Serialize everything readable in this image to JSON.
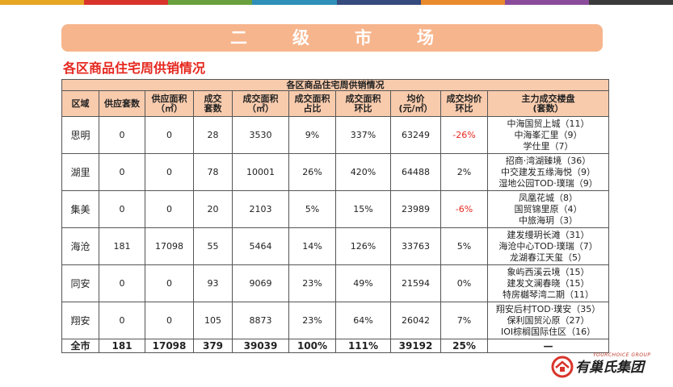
{
  "top_bar_colors": [
    "#e6a523",
    "#d9342b",
    "#6aa13e",
    "#2e8fb8",
    "#354a7d",
    "#e98a2d",
    "#8a4b9b",
    "#3b3b3b"
  ],
  "banner": {
    "text": "二级市场"
  },
  "section_title": "各区商品住宅周供销情况",
  "table": {
    "caption": "各区商品住宅周供销情况",
    "headers": [
      [
        "区域"
      ],
      [
        "供应套数"
      ],
      [
        "供应面积",
        "（㎡）"
      ],
      [
        "成交",
        "套数"
      ],
      [
        "成交面积",
        "（㎡）"
      ],
      [
        "成交面积",
        "占比"
      ],
      [
        "成交面积",
        "环比"
      ],
      [
        "均价",
        "(元/㎡）"
      ],
      [
        "成交均价",
        "环比"
      ],
      [
        "主力成交楼盘",
        "(套数）"
      ]
    ],
    "rows": [
      {
        "area": "思明",
        "supply_units": "0",
        "supply_area": "0",
        "deal_units": "28",
        "deal_area": "3530",
        "share": "9%",
        "mom": "337%",
        "avg_price": "63249",
        "price_mom": "-26%",
        "price_mom_negative": true,
        "projects": [
          "中海国贸上城（11）",
          "中海峯汇里（9）",
          "学仕里（7）"
        ]
      },
      {
        "area": "湖里",
        "supply_units": "0",
        "supply_area": "0",
        "deal_units": "78",
        "deal_area": "10001",
        "share": "26%",
        "mom": "420%",
        "avg_price": "64488",
        "price_mom": "2%",
        "price_mom_negative": false,
        "projects": [
          "招商·湾湖臻境（36）",
          "中交建发五缘海悦（9）",
          "湿地公园TOD·璞瑞（9）"
        ]
      },
      {
        "area": "集美",
        "supply_units": "0",
        "supply_area": "0",
        "deal_units": "20",
        "deal_area": "2103",
        "share": "5%",
        "mom": "15%",
        "avg_price": "23989",
        "price_mom": "-6%",
        "price_mom_negative": true,
        "projects": [
          "凤凰花城（8）",
          "国贸锦里原（4）",
          "中旅海玥（3）"
        ]
      },
      {
        "area": "海沧",
        "supply_units": "181",
        "supply_area": "17098",
        "deal_units": "55",
        "deal_area": "5464",
        "share": "14%",
        "mom": "126%",
        "avg_price": "33763",
        "price_mom": "5%",
        "price_mom_negative": false,
        "projects": [
          "建发缦玥长滩（31）",
          "海沧中心TOD·璞瑞（7）",
          "龙湖春江天玺（5）"
        ]
      },
      {
        "area": "同安",
        "supply_units": "0",
        "supply_area": "0",
        "deal_units": "93",
        "deal_area": "9069",
        "share": "23%",
        "mom": "49%",
        "avg_price": "21594",
        "price_mom": "0%",
        "price_mom_negative": false,
        "projects": [
          "象屿西溪云境（15）",
          "建发文澜春晓（15）",
          "特房樾琴湾二期（11）"
        ]
      },
      {
        "area": "翔安",
        "supply_units": "0",
        "supply_area": "0",
        "deal_units": "105",
        "deal_area": "8873",
        "share": "23%",
        "mom": "64%",
        "avg_price": "26042",
        "price_mom": "7%",
        "price_mom_negative": false,
        "projects": [
          "翔安后村TOD·璞安（35）",
          "保利国贸沁原（27）",
          "IOI棕榈国际住区（16）"
        ]
      }
    ],
    "total": {
      "area": "全市",
      "supply_units": "181",
      "supply_area": "17098",
      "deal_units": "379",
      "deal_area": "39039",
      "share": "100%",
      "mom": "111%",
      "avg_price": "39192",
      "price_mom": "25%",
      "projects": "—"
    }
  },
  "logo": {
    "en": "YOURCHOICE GROUP",
    "cn": "有巢氏集团"
  },
  "colors": {
    "banner": "#f6b58c",
    "header_fill": "#f8cbad",
    "accent_red": "#e5281f"
  }
}
